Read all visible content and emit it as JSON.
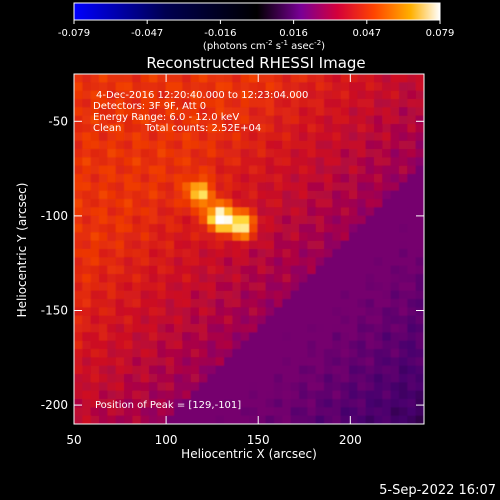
{
  "colorbar": {
    "ticks": [
      "-0.079",
      "-0.047",
      "-0.016",
      "0.016",
      "0.047",
      "0.079"
    ],
    "unit_label": "(photons cm",
    "unit_exp1": "-2",
    "unit_mid": " s",
    "unit_exp2": "-1",
    "unit_mid2": " asec",
    "unit_exp3": "-2",
    "unit_end": ")",
    "colors": [
      "#0000ff",
      "#000000",
      "#5a00a0",
      "#c8003c",
      "#ff3c00",
      "#ffa800",
      "#ffffff"
    ]
  },
  "annotations": {
    "time_range": "4-Dec-2016 12:20:40.000 to 12:23:04.000",
    "detectors": "Detectors: 3F 9F, Att 0",
    "energy": "Energy Range: 6.0 - 12.0 keV",
    "clean": "Clean",
    "counts": "Total counts: 2.52E+04",
    "peak": "Position of Peak = [129,-101]"
  },
  "footer": {
    "date": "5-Sep-2022 16:07"
  },
  "chart_data": {
    "type": "heatmap",
    "title": "Reconstructed RHESSI Image",
    "xlabel": "Heliocentric X (arcsec)",
    "ylabel": "Heliocentric Y (arcsec)",
    "xlim": [
      50,
      240
    ],
    "ylim": [
      -210,
      -25
    ],
    "xticks": [
      50,
      100,
      150,
      200
    ],
    "yticks": [
      -50,
      -100,
      -150,
      -200
    ],
    "colorbar_range": [
      -0.079,
      0.079
    ],
    "sources": [
      {
        "x": 129,
        "y": -101,
        "peak": 0.079
      },
      {
        "x": 141,
        "y": -105,
        "peak": 0.07
      },
      {
        "x": 118,
        "y": -88,
        "peak": 0.05
      }
    ],
    "peak_position": [
      129,
      -101
    ]
  }
}
